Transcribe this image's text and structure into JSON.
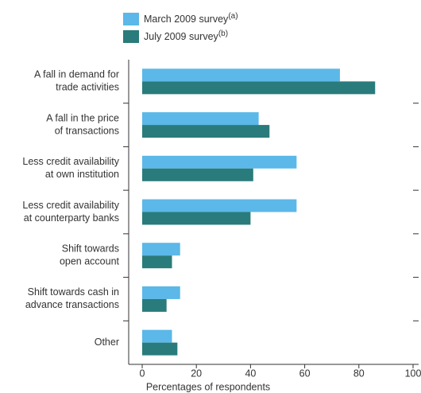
{
  "chart_data": {
    "type": "hbar",
    "categories": [
      [
        "A fall in demand for",
        "trade activities"
      ],
      [
        "A fall in the price",
        "of transactions"
      ],
      [
        "Less credit availability",
        "at own institution"
      ],
      [
        "Less credit availability",
        "at counterparty banks"
      ],
      [
        "Shift towards",
        "open account"
      ],
      [
        "Shift towards cash in",
        "advance transactions"
      ],
      [
        "Other"
      ]
    ],
    "series": [
      {
        "name": "March 2009 survey",
        "note": "(a)",
        "color": "#5bb8e8",
        "values": [
          73,
          43,
          57,
          57,
          14,
          14,
          11
        ]
      },
      {
        "name": "July 2009 survey",
        "note": "(b)",
        "color": "#2a7b7b",
        "values": [
          86,
          47,
          41,
          40,
          11,
          9,
          13
        ]
      }
    ],
    "xlim": [
      0,
      100
    ],
    "xticks": [
      0,
      20,
      40,
      60,
      80,
      100
    ],
    "xlabel": "Percentages of respondents"
  }
}
